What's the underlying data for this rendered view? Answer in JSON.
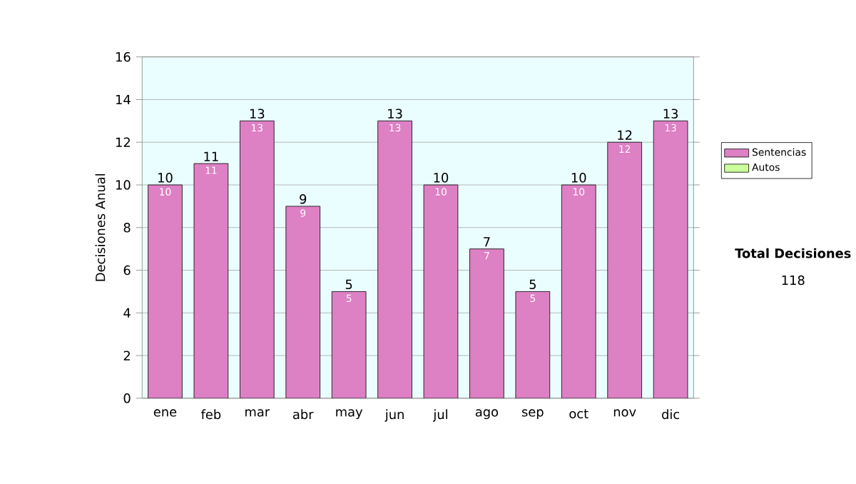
{
  "chart_data": {
    "type": "bar",
    "stacked": true,
    "ylabel": "Decisiones Anual",
    "categories": [
      "ene",
      "feb",
      "mar",
      "abr",
      "may",
      "jun",
      "jul",
      "ago",
      "sep",
      "oct",
      "nov",
      "dic"
    ],
    "series": [
      {
        "name": "Sentencias",
        "color": "#dd80c4",
        "values": [
          10,
          11,
          13,
          9,
          5,
          13,
          10,
          7,
          5,
          10,
          12,
          13
        ],
        "value_labels": [
          "10",
          "11",
          "13",
          "9",
          "5",
          "13",
          "10",
          "7",
          "5",
          "10",
          "12",
          "13"
        ]
      },
      {
        "name": "Autos",
        "color": "#ccff99",
        "values": [
          0,
          0,
          0,
          0,
          0,
          0,
          0,
          0,
          0,
          0,
          0,
          0
        ]
      }
    ],
    "totals": [
      "10",
      "11",
      "13",
      "9",
      "5",
      "13",
      "10",
      "7",
      "5",
      "10",
      "12",
      "13"
    ],
    "ylim": [
      0,
      16
    ],
    "yticks": [
      0,
      2,
      4,
      6,
      8,
      10,
      12,
      14,
      16
    ],
    "grid": "y",
    "legend": "right",
    "annotations": [
      "Total Decisiones",
      "118"
    ]
  }
}
